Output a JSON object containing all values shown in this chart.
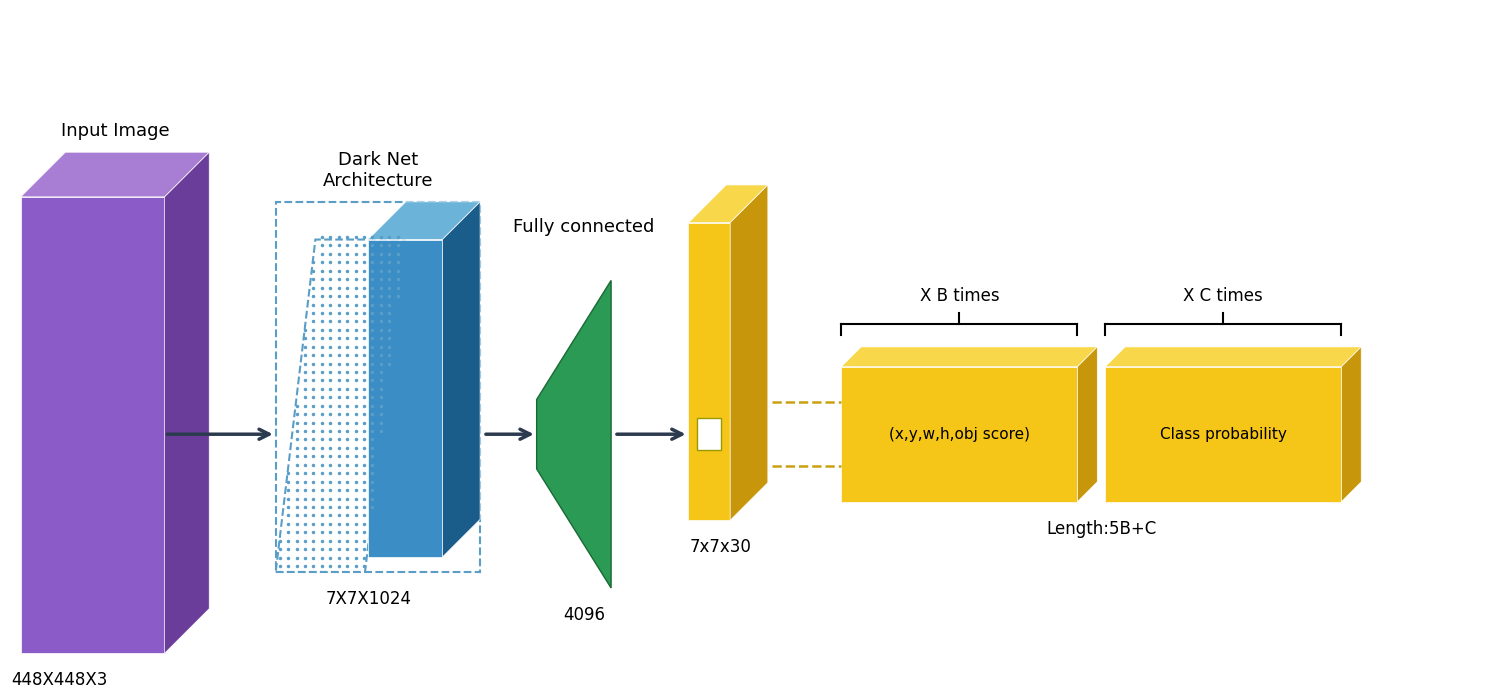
{
  "bg_color": "#ffffff",
  "purple_face": "#8B5CC8",
  "purple_side": "#6A3D9A",
  "purple_top": "#A87DD4",
  "blue_face": "#3A8DC5",
  "blue_side": "#1A5C8A",
  "blue_top": "#6BB3D8",
  "dot_color": "#5A9EC8",
  "green_face": "#2A9A55",
  "green_dark": "#1A6A35",
  "yellow_face": "#F5C518",
  "yellow_side": "#C8960A",
  "yellow_top": "#F8D84A",
  "arrow_color": "#2C3A50",
  "dashed_line_color": "#C8A010",
  "text_color": "#000000",
  "labels": {
    "input_image": "Input Image",
    "size_448": "448X448X3",
    "darknet": "Dark Net\nArchitecture",
    "size_7x7": "7X7X1024",
    "fully_connected": "Fully connected",
    "size_4096": "4096",
    "size_7x7x30": "7x7x30",
    "xb_times": "X B times",
    "xc_times": "X C times",
    "length": "Length:5B+C",
    "obj_score": "(x,y,w,h,obj score)",
    "class_prob": "Class probability"
  },
  "figsize": [
    15.02,
    6.95
  ],
  "dpi": 100
}
